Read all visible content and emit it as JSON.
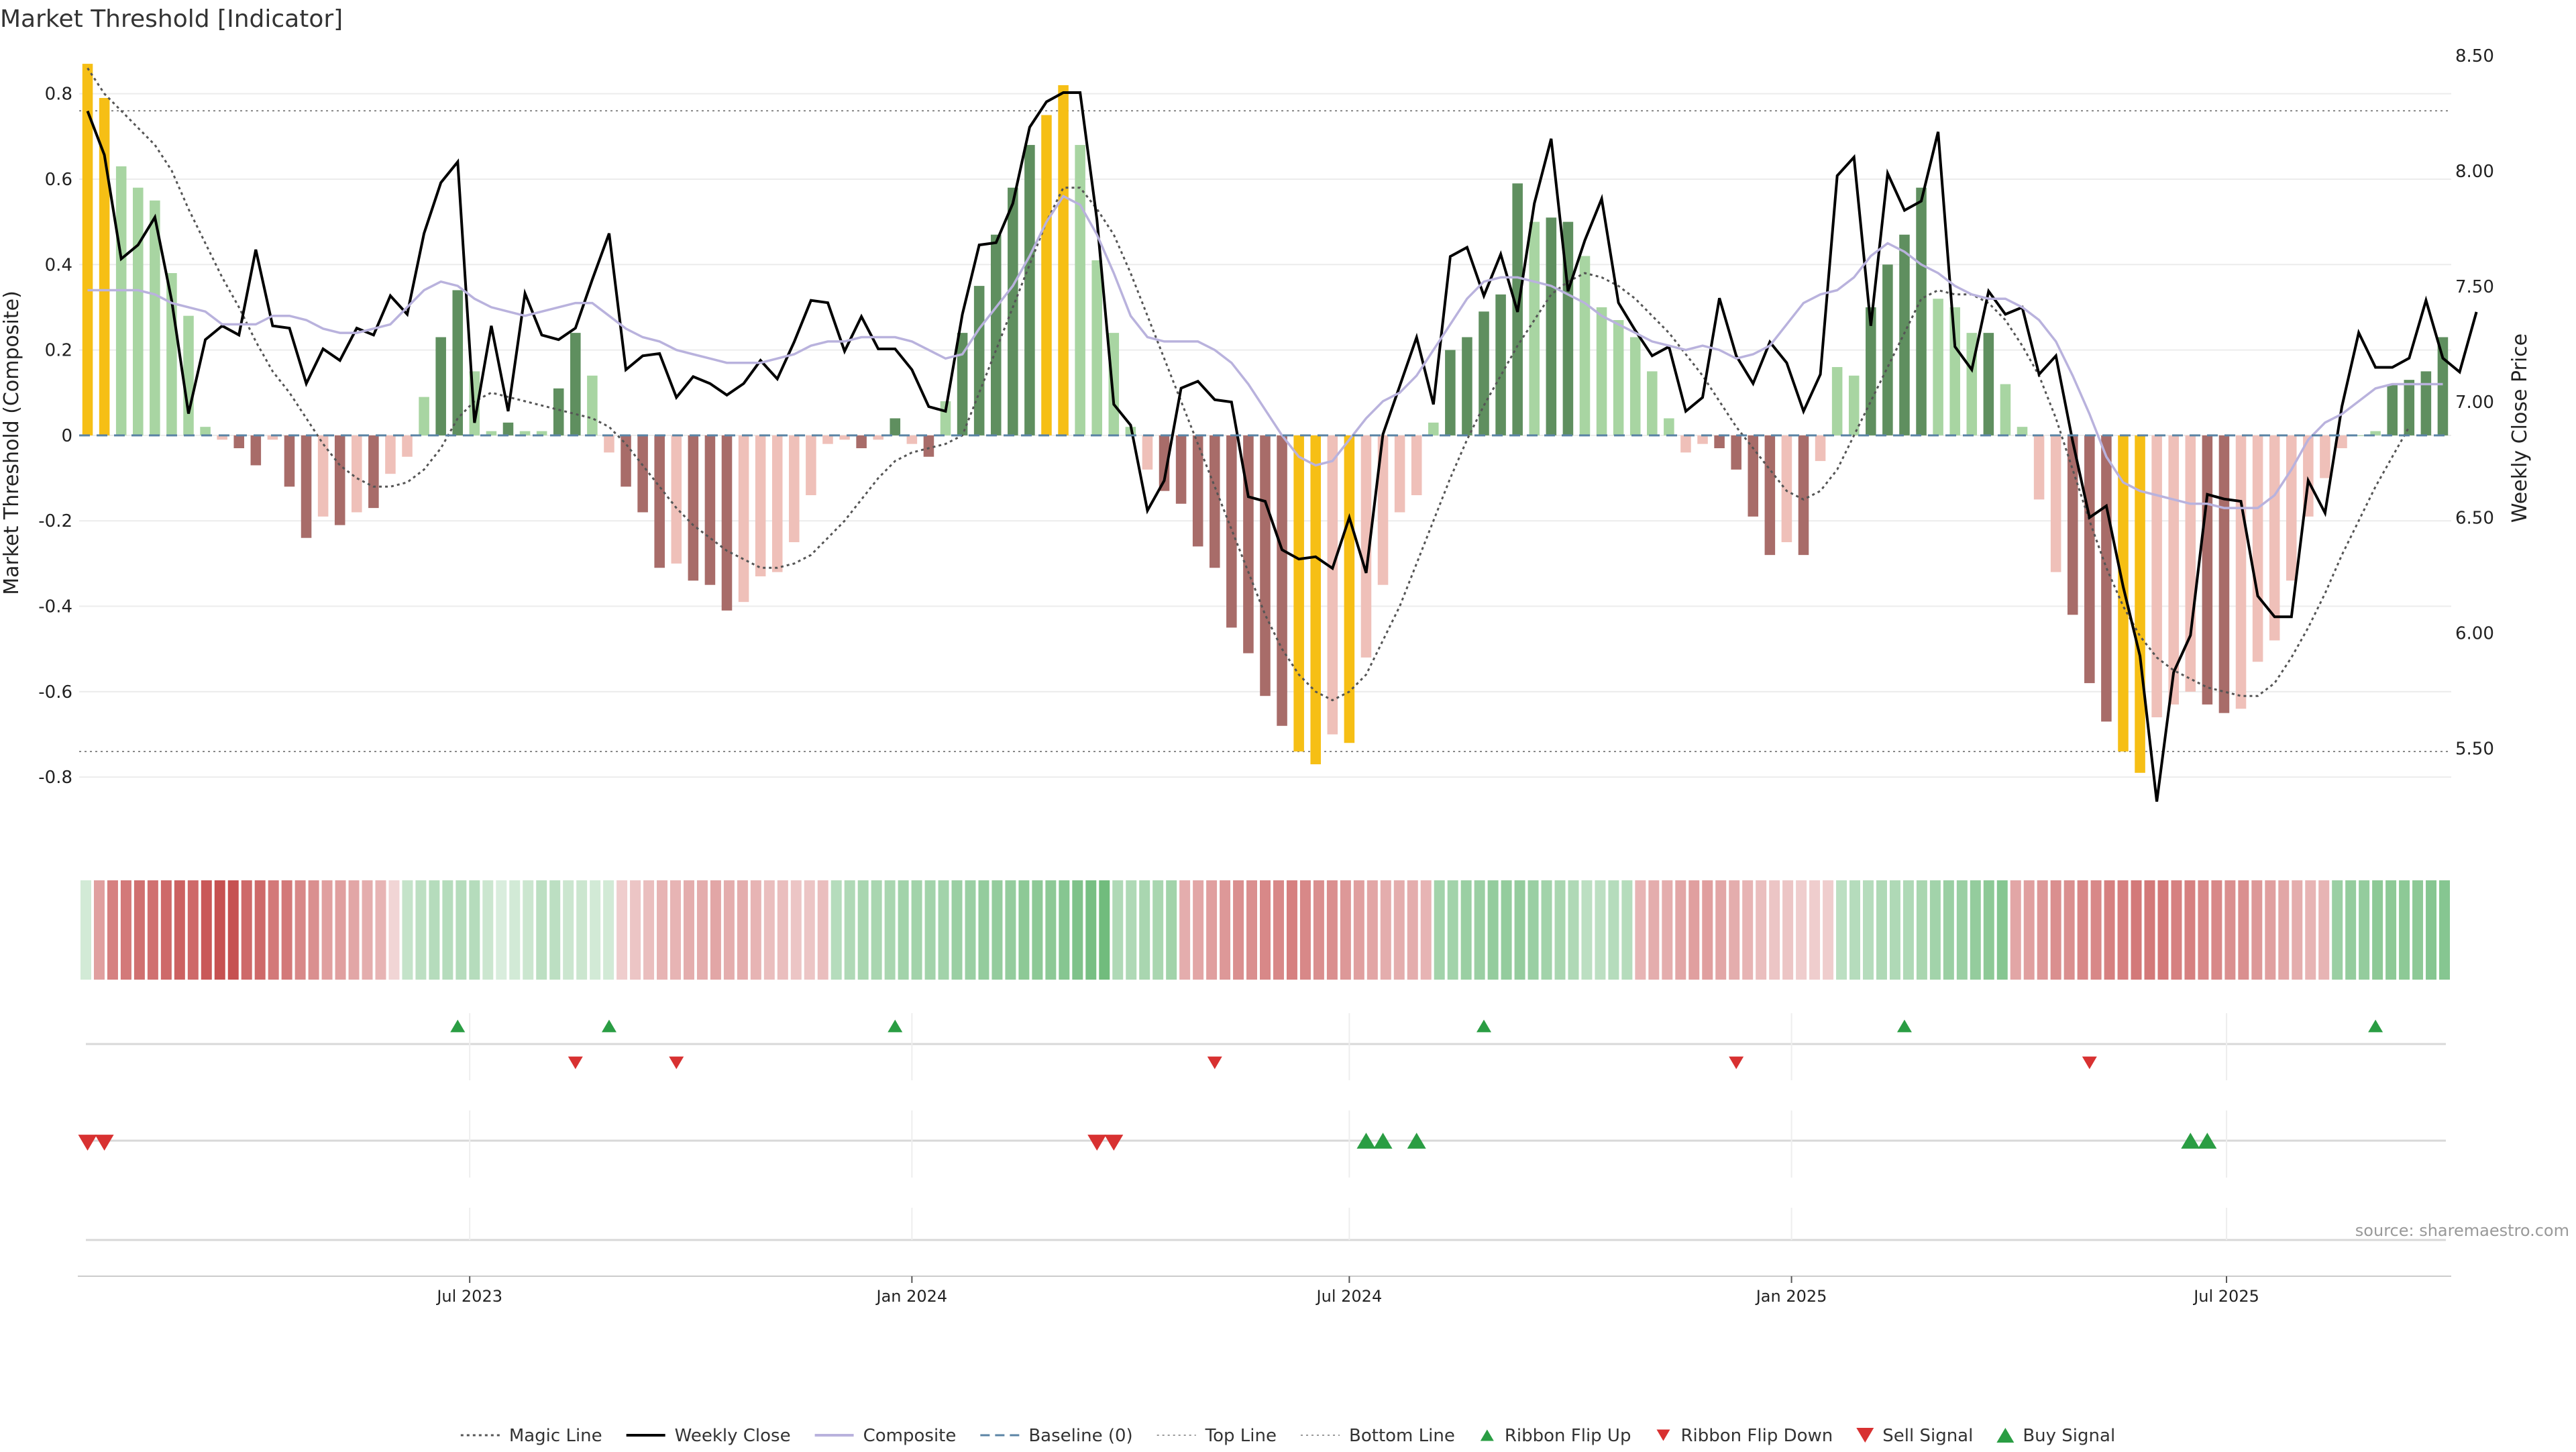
{
  "title": "Market Threshold [Indicator]",
  "source_label": "source: sharemaestro.com",
  "colors": {
    "strong_green": "#5f8f5f",
    "light_green": "#a8d5a2",
    "strong_red": "#a86c69",
    "light_red": "#efc0b9",
    "gold": "#f6bf15",
    "composite": "#b9b2dd",
    "baseline": "#5b84a5",
    "weekly_close": "#000000",
    "magic_line": "#555555",
    "ribbon_green": "#5cb26a",
    "ribbon_red": "#c44a4a",
    "signal_green": "#2a9d43",
    "signal_red": "#d83131"
  },
  "chart_data": {
    "type": "bar",
    "x_start": "2023-01-23",
    "x_step_days": 7,
    "x_ticks": [
      {
        "date": "2023-07-01",
        "label": "Jul 2023"
      },
      {
        "date": "2024-01-01",
        "label": "Jan 2024"
      },
      {
        "date": "2024-07-01",
        "label": "Jul 2024"
      },
      {
        "date": "2025-01-01",
        "label": "Jan 2025"
      },
      {
        "date": "2025-07-01",
        "label": "Jul 2025"
      }
    ],
    "y_left": {
      "label": "Market Threshold (Composite)",
      "range": [
        -0.96,
        0.9
      ],
      "ticks": [
        0.8,
        0.6,
        0.4,
        0.2,
        0,
        -0.2,
        -0.4,
        -0.6,
        -0.8
      ]
    },
    "y_right": {
      "label": "Weekly Close Price",
      "range": [
        5.08,
        8.52
      ],
      "ticks": [
        8.5,
        8.0,
        7.5,
        7.0,
        6.5,
        6.0,
        5.5
      ],
      "tick_labels": [
        "8.50",
        "8.00",
        "7.50",
        "7.00",
        "6.50",
        "6.00",
        "5.50"
      ]
    },
    "top_line": 0.76,
    "bottom_line": -0.74,
    "grid": true,
    "bars": [
      0.87,
      0.79,
      0.63,
      0.58,
      0.55,
      0.38,
      0.28,
      0.02,
      -0.01,
      -0.03,
      -0.07,
      -0.01,
      -0.12,
      -0.24,
      -0.19,
      -0.21,
      -0.18,
      -0.17,
      -0.09,
      -0.05,
      0.09,
      0.23,
      0.34,
      0.15,
      0.01,
      0.03,
      0.01,
      0.01,
      0.11,
      0.24,
      0.14,
      -0.04,
      -0.12,
      -0.18,
      -0.31,
      -0.3,
      -0.34,
      -0.35,
      -0.41,
      -0.39,
      -0.33,
      -0.32,
      -0.25,
      -0.14,
      -0.02,
      -0.01,
      -0.03,
      -0.01,
      0.04,
      -0.02,
      -0.05,
      0.08,
      0.24,
      0.35,
      0.47,
      0.58,
      0.68,
      0.75,
      0.82,
      0.68,
      0.41,
      0.24,
      0.02,
      -0.08,
      -0.13,
      -0.16,
      -0.26,
      -0.31,
      -0.45,
      -0.51,
      -0.61,
      -0.68,
      -0.74,
      -0.77,
      -0.7,
      -0.72,
      -0.52,
      -0.35,
      -0.18,
      -0.14,
      0.03,
      0.2,
      0.23,
      0.29,
      0.33,
      0.59,
      0.5,
      0.51,
      0.5,
      0.42,
      0.3,
      0.27,
      0.23,
      0.15,
      0.04,
      -0.04,
      -0.02,
      -0.03,
      -0.08,
      -0.19,
      -0.28,
      -0.25,
      -0.28,
      -0.06,
      0.16,
      0.14,
      0.3,
      0.4,
      0.47,
      0.58,
      0.32,
      0.3,
      0.24,
      0.24,
      0.12,
      0.02,
      -0.15,
      -0.32,
      -0.42,
      -0.58,
      -0.67,
      -0.74,
      -0.79,
      -0.66,
      -0.63,
      -0.6,
      -0.63,
      -0.65,
      -0.64,
      -0.53,
      -0.48,
      -0.34,
      -0.19,
      -0.1,
      -0.03,
      0.0,
      0.01,
      0.12,
      0.13,
      0.15,
      0.23
    ],
    "bar_colors": [
      "gold",
      "gold",
      "light_green",
      "light_green",
      "light_green",
      "light_green",
      "light_green",
      "light_green",
      "light_red",
      "strong_red",
      "strong_red",
      "light_red",
      "strong_red",
      "strong_red",
      "light_red",
      "strong_red",
      "light_red",
      "strong_red",
      "light_red",
      "light_red",
      "light_green",
      "strong_green",
      "strong_green",
      "light_green",
      "light_green",
      "strong_green",
      "light_green",
      "light_green",
      "strong_green",
      "strong_green",
      "light_green",
      "light_red",
      "strong_red",
      "strong_red",
      "strong_red",
      "light_red",
      "strong_red",
      "strong_red",
      "strong_red",
      "light_red",
      "light_red",
      "light_red",
      "light_red",
      "light_red",
      "light_red",
      "light_red",
      "strong_red",
      "light_red",
      "strong_green",
      "light_red",
      "strong_red",
      "light_green",
      "strong_green",
      "strong_green",
      "strong_green",
      "strong_green",
      "strong_green",
      "gold",
      "gold",
      "light_green",
      "light_green",
      "light_green",
      "light_green",
      "light_red",
      "strong_red",
      "strong_red",
      "strong_red",
      "strong_red",
      "strong_red",
      "strong_red",
      "strong_red",
      "strong_red",
      "gold",
      "gold",
      "light_red",
      "gold",
      "light_red",
      "light_red",
      "light_red",
      "light_red",
      "light_green",
      "strong_green",
      "strong_green",
      "strong_green",
      "strong_green",
      "strong_green",
      "light_green",
      "strong_green",
      "strong_green",
      "light_green",
      "light_green",
      "light_green",
      "light_green",
      "light_green",
      "light_green",
      "light_red",
      "light_red",
      "strong_red",
      "strong_red",
      "strong_red",
      "strong_red",
      "light_red",
      "strong_red",
      "light_red",
      "light_green",
      "light_green",
      "strong_green",
      "strong_green",
      "strong_green",
      "strong_green",
      "light_green",
      "light_green",
      "light_green",
      "strong_green",
      "light_green",
      "light_green",
      "light_red",
      "light_red",
      "strong_red",
      "strong_red",
      "strong_red",
      "gold",
      "gold",
      "light_red",
      "light_red",
      "light_red",
      "strong_red",
      "strong_red",
      "light_red",
      "light_red",
      "light_red",
      "light_red",
      "light_red",
      "light_red",
      "light_red",
      "light_green",
      "light_green",
      "strong_green",
      "strong_green",
      "strong_green",
      "strong_green"
    ],
    "series": [
      {
        "name": "Magic Line",
        "axis": "left",
        "style": "dotted",
        "values": [
          0.86,
          0.8,
          0.76,
          0.72,
          0.68,
          0.62,
          0.53,
          0.45,
          0.37,
          0.3,
          0.22,
          0.15,
          0.1,
          0.04,
          -0.02,
          -0.07,
          -0.1,
          -0.12,
          -0.12,
          -0.11,
          -0.08,
          -0.03,
          0.04,
          0.08,
          0.1,
          0.09,
          0.08,
          0.07,
          0.06,
          0.05,
          0.04,
          0.02,
          -0.02,
          -0.07,
          -0.12,
          -0.17,
          -0.21,
          -0.24,
          -0.27,
          -0.29,
          -0.31,
          -0.31,
          -0.3,
          -0.28,
          -0.24,
          -0.2,
          -0.15,
          -0.1,
          -0.06,
          -0.04,
          -0.03,
          -0.02,
          0.0,
          0.1,
          0.2,
          0.3,
          0.4,
          0.5,
          0.58,
          0.58,
          0.53,
          0.47,
          0.38,
          0.28,
          0.18,
          0.08,
          -0.02,
          -0.12,
          -0.22,
          -0.32,
          -0.42,
          -0.5,
          -0.56,
          -0.6,
          -0.62,
          -0.6,
          -0.56,
          -0.48,
          -0.4,
          -0.3,
          -0.2,
          -0.1,
          -0.01,
          0.07,
          0.14,
          0.21,
          0.27,
          0.33,
          0.36,
          0.38,
          0.37,
          0.35,
          0.32,
          0.28,
          0.24,
          0.19,
          0.14,
          0.08,
          0.02,
          -0.03,
          -0.08,
          -0.13,
          -0.15,
          -0.13,
          -0.08,
          0.0,
          0.08,
          0.16,
          0.24,
          0.32,
          0.34,
          0.33,
          0.33,
          0.31,
          0.27,
          0.21,
          0.14,
          0.04,
          -0.08,
          -0.2,
          -0.31,
          -0.4,
          -0.47,
          -0.52,
          -0.55,
          -0.57,
          -0.59,
          -0.6,
          -0.61,
          -0.61,
          -0.58,
          -0.52,
          -0.45,
          -0.37,
          -0.28,
          -0.2,
          -0.12,
          -0.05,
          0.02
        ]
      },
      {
        "name": "Weekly Close",
        "axis": "right",
        "style": "solid",
        "values": [
          8.26,
          8.07,
          7.62,
          7.68,
          7.8,
          7.44,
          6.95,
          7.27,
          7.33,
          7.29,
          7.66,
          7.33,
          7.32,
          7.08,
          7.23,
          7.18,
          7.32,
          7.29,
          7.46,
          7.38,
          7.73,
          7.95,
          8.04,
          6.91,
          7.33,
          6.96,
          7.47,
          7.29,
          7.27,
          7.32,
          7.53,
          7.73,
          7.14,
          7.2,
          7.21,
          7.02,
          7.11,
          7.08,
          7.03,
          7.08,
          7.18,
          7.1,
          7.26,
          7.44,
          7.43,
          7.22,
          7.37,
          7.23,
          7.23,
          7.14,
          6.98,
          6.96,
          7.38,
          7.68,
          7.69,
          7.86,
          8.19,
          8.3,
          8.34,
          8.34,
          7.79,
          6.99,
          6.9,
          6.53,
          6.66,
          7.06,
          7.09,
          7.01,
          7.0,
          6.59,
          6.57,
          6.36,
          6.32,
          6.33,
          6.28,
          6.5,
          6.26,
          6.86,
          7.07,
          7.28,
          6.99,
          7.63,
          7.67,
          7.46,
          7.64,
          7.39,
          7.86,
          8.14,
          7.48,
          7.7,
          7.88,
          7.43,
          7.31,
          7.2,
          7.24,
          6.96,
          7.02,
          7.45,
          7.2,
          7.08,
          7.26,
          7.17,
          6.96,
          7.12,
          7.98,
          8.06,
          7.33,
          7.99,
          7.83,
          7.87,
          8.17,
          7.24,
          7.14,
          7.48,
          7.38,
          7.41,
          7.12,
          7.2,
          6.83,
          6.5,
          6.55,
          6.2,
          5.9,
          5.27,
          5.83,
          5.99,
          6.6,
          6.58,
          6.57,
          6.16,
          6.07,
          6.07,
          6.66,
          6.52,
          6.98,
          7.3,
          7.15,
          7.15,
          7.19,
          7.44,
          7.19,
          7.13,
          7.39
        ]
      },
      {
        "name": "Composite",
        "axis": "left",
        "style": "solid",
        "values": [
          0.34,
          0.34,
          0.34,
          0.34,
          0.33,
          0.31,
          0.3,
          0.29,
          0.26,
          0.26,
          0.26,
          0.28,
          0.28,
          0.27,
          0.25,
          0.24,
          0.24,
          0.25,
          0.26,
          0.3,
          0.34,
          0.36,
          0.35,
          0.32,
          0.3,
          0.29,
          0.28,
          0.29,
          0.3,
          0.31,
          0.31,
          0.28,
          0.25,
          0.23,
          0.22,
          0.2,
          0.19,
          0.18,
          0.17,
          0.17,
          0.17,
          0.18,
          0.19,
          0.21,
          0.22,
          0.22,
          0.23,
          0.23,
          0.23,
          0.22,
          0.2,
          0.18,
          0.19,
          0.25,
          0.3,
          0.35,
          0.42,
          0.5,
          0.56,
          0.54,
          0.47,
          0.38,
          0.28,
          0.23,
          0.22,
          0.22,
          0.22,
          0.2,
          0.17,
          0.12,
          0.06,
          0.0,
          -0.05,
          -0.07,
          -0.06,
          -0.01,
          0.04,
          0.08,
          0.1,
          0.14,
          0.2,
          0.26,
          0.32,
          0.36,
          0.37,
          0.37,
          0.36,
          0.35,
          0.33,
          0.31,
          0.28,
          0.26,
          0.24,
          0.22,
          0.21,
          0.2,
          0.21,
          0.2,
          0.18,
          0.19,
          0.21,
          0.26,
          0.31,
          0.33,
          0.34,
          0.37,
          0.42,
          0.45,
          0.43,
          0.4,
          0.38,
          0.35,
          0.33,
          0.32,
          0.32,
          0.3,
          0.27,
          0.22,
          0.14,
          0.05,
          -0.05,
          -0.11,
          -0.13,
          -0.14,
          -0.15,
          -0.16,
          -0.16,
          -0.17,
          -0.17,
          -0.17,
          -0.14,
          -0.08,
          -0.01,
          0.03,
          0.05,
          0.08,
          0.11,
          0.12,
          0.12,
          0.12,
          0.12
        ]
      },
      {
        "name": "Baseline (0)",
        "axis": "left",
        "style": "dashed",
        "values": [
          0
        ]
      }
    ],
    "ribbon": {
      "values": [
        0.15,
        -0.45,
        -0.65,
        -0.7,
        -0.75,
        -0.75,
        -0.8,
        -0.85,
        -0.8,
        -0.9,
        -0.95,
        -0.95,
        -0.8,
        -0.8,
        -0.7,
        -0.7,
        -0.6,
        -0.55,
        -0.45,
        -0.45,
        -0.4,
        -0.35,
        -0.3,
        -0.1,
        0.25,
        0.3,
        0.35,
        0.35,
        0.35,
        0.35,
        0.2,
        0.1,
        0.15,
        0.2,
        0.3,
        0.3,
        0.2,
        0.2,
        0.15,
        0.15,
        -0.15,
        -0.2,
        -0.25,
        -0.3,
        -0.3,
        -0.35,
        -0.35,
        -0.4,
        -0.35,
        -0.35,
        -0.3,
        -0.25,
        -0.25,
        -0.2,
        -0.2,
        -0.25,
        0.35,
        0.4,
        0.45,
        0.45,
        0.45,
        0.5,
        0.5,
        0.5,
        0.5,
        0.55,
        0.55,
        0.6,
        0.6,
        0.6,
        0.65,
        0.65,
        0.65,
        0.7,
        0.75,
        0.8,
        0.85,
        0.4,
        0.4,
        0.45,
        0.45,
        0.5,
        -0.35,
        -0.4,
        -0.45,
        -0.5,
        -0.55,
        -0.55,
        -0.6,
        -0.6,
        -0.65,
        -0.6,
        -0.55,
        -0.55,
        -0.5,
        -0.45,
        -0.4,
        -0.35,
        -0.35,
        -0.35,
        -0.3,
        0.5,
        0.5,
        0.55,
        0.55,
        0.6,
        0.6,
        0.6,
        0.55,
        0.5,
        0.45,
        0.4,
        0.3,
        0.3,
        0.35,
        0.35,
        -0.3,
        -0.35,
        -0.35,
        -0.4,
        -0.45,
        -0.45,
        -0.4,
        -0.35,
        -0.3,
        -0.25,
        -0.2,
        -0.2,
        -0.15,
        -0.15,
        -0.15,
        0.3,
        0.35,
        0.35,
        0.4,
        0.4,
        0.4,
        0.45,
        0.5,
        0.55,
        0.55,
        0.6,
        0.65,
        0.7,
        -0.4,
        -0.45,
        -0.5,
        -0.55,
        -0.55,
        -0.6,
        -0.6,
        -0.65,
        -0.65,
        -0.7,
        -0.7,
        -0.7,
        -0.65,
        -0.65,
        -0.6,
        -0.6,
        -0.55,
        -0.55,
        -0.5,
        -0.45,
        -0.4,
        -0.35,
        -0.3,
        -0.3,
        0.55,
        0.6,
        0.6,
        0.65,
        0.65,
        0.65,
        0.65,
        0.7,
        0.7
      ]
    },
    "ribbon_flip_up": [
      22,
      31,
      48,
      83,
      108,
      136
    ],
    "ribbon_flip_down": [
      29,
      35,
      67,
      98,
      119
    ],
    "sell_signal": [
      0,
      1,
      60,
      61
    ],
    "buy_signal": [
      76,
      77,
      79,
      125,
      126
    ]
  },
  "legend": [
    {
      "label": "Magic Line",
      "kind": "line-dotted",
      "color": "#555555"
    },
    {
      "label": "Weekly Close",
      "kind": "line-solid",
      "color": "#000000"
    },
    {
      "label": "Composite",
      "kind": "line-solid",
      "color": "#b9b2dd"
    },
    {
      "label": "Baseline (0)",
      "kind": "line-dashed",
      "color": "#5b84a5"
    },
    {
      "label": "Top Line",
      "kind": "line-dotted-thin",
      "color": "#999999"
    },
    {
      "label": "Bottom Line",
      "kind": "line-dotted-thin",
      "color": "#999999"
    },
    {
      "label": "Ribbon Flip Up",
      "kind": "tri-up-small",
      "color": "#2a9d43"
    },
    {
      "label": "Ribbon Flip Down",
      "kind": "tri-down-small",
      "color": "#d83131"
    },
    {
      "label": "Sell Signal",
      "kind": "tri-down",
      "color": "#d83131"
    },
    {
      "label": "Buy Signal",
      "kind": "tri-up",
      "color": "#2a9d43"
    }
  ]
}
